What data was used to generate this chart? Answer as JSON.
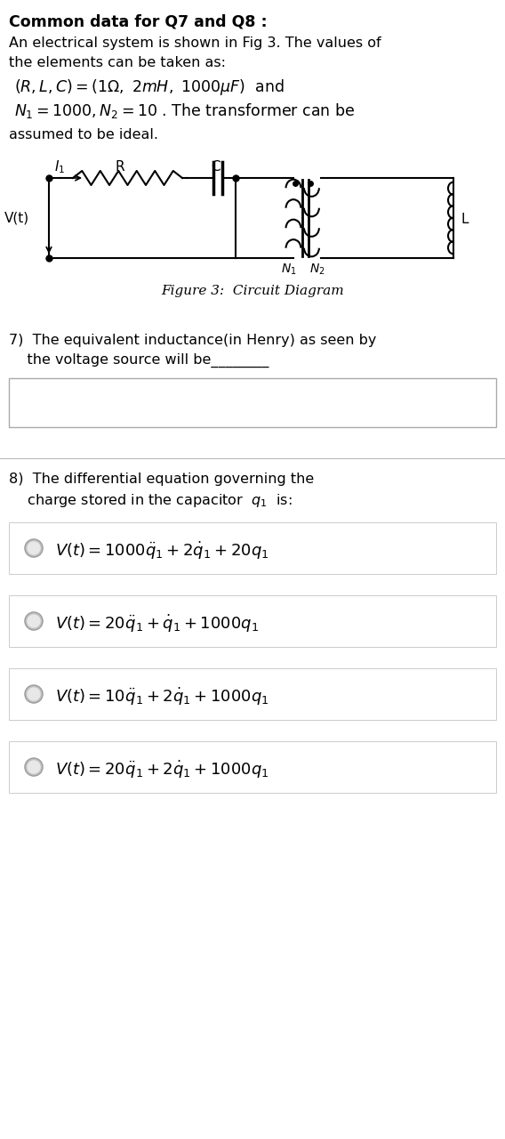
{
  "bg_color": "#ffffff",
  "fig_width": 5.68,
  "fig_height": 12.8,
  "header_bold": "Common data for Q7 and Q8 :",
  "line1": "An electrical system is shown in Fig 3. The values of",
  "line2": "the elements can be taken as:",
  "formula1": "$(R, L, C) = (1\\Omega,\\ 2mH,\\ 1000\\mu F)$  and",
  "formula2": "$N_1 = 1000, N_2 = 10$ . The transformer can be",
  "line3": "assumed to be ideal.",
  "fig_caption": "Figure 3:  Circuit Diagram",
  "q7_text1": "7)  The equivalent inductance(in Henry) as seen by",
  "q7_text2": "    the voltage source will be________",
  "q8_text1": "8)  The differential equation governing the",
  "q8_text2": "    charge stored in the capacitor  $q_1$  is:",
  "option_a": "$V(t) = 1000\\ddot{q}_1 + 2\\dot{q}_1 + 20q_1$",
  "option_b": "$V(t) = 20\\ddot{q}_1 + \\dot{q}_1 + 1000q_1$",
  "option_c": "$V(t) = 10\\ddot{q}_1 + 2\\dot{q}_1 + 1000q_1$",
  "option_d": "$V(t) = 20\\ddot{q}_1 + 2\\dot{q}_1 + 1000q_1$"
}
